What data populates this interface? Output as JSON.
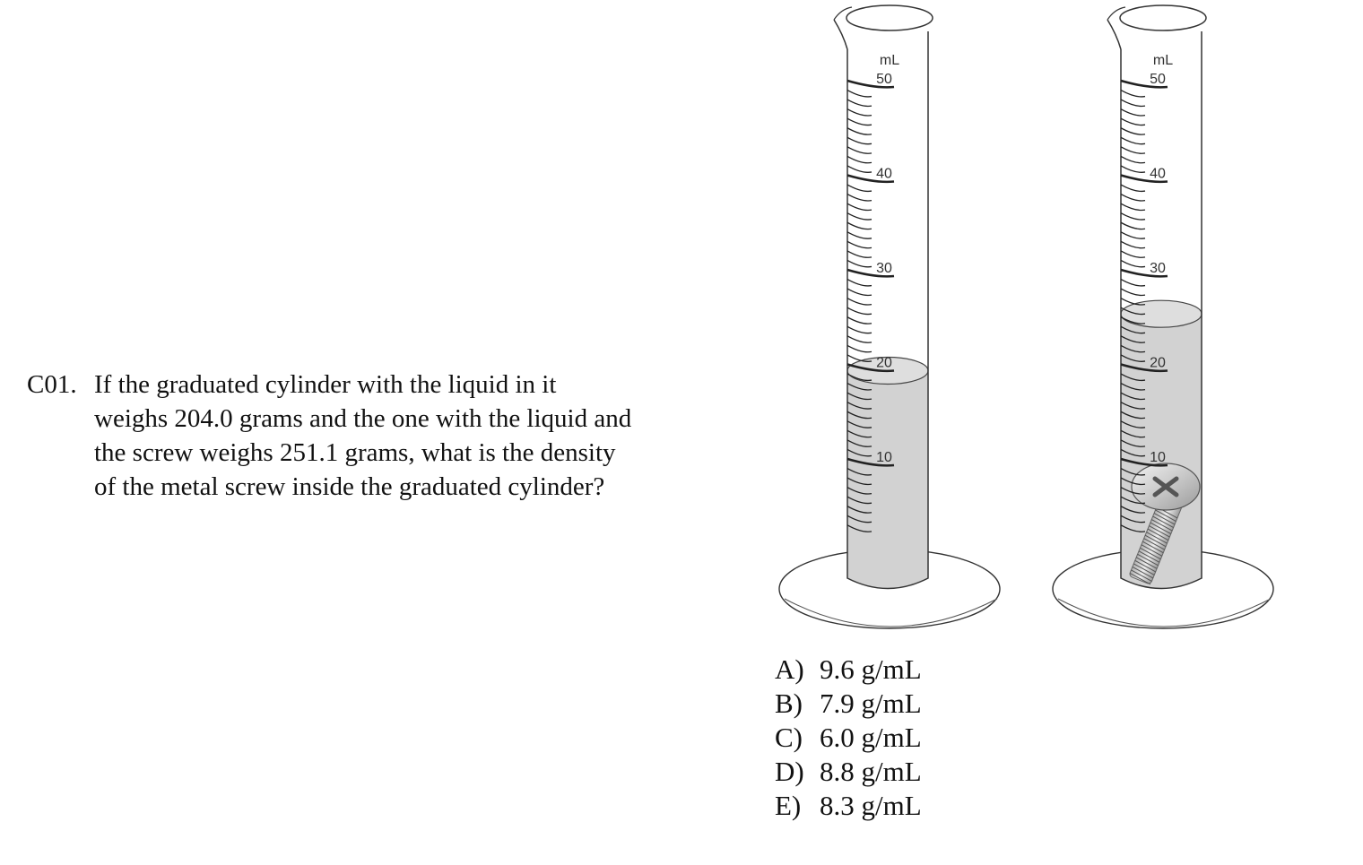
{
  "question": {
    "number": "C01.",
    "lines": [
      "If the graduated cylinder with the liquid in it",
      "weighs 204.0 grams and the one with the liquid and",
      "the screw weighs 251.1 grams, what is the density",
      "of the metal screw inside the graduated cylinder?"
    ]
  },
  "cylinders": [
    {
      "unit_label": "mL",
      "scale_labels": [
        "50",
        "40",
        "30",
        "20",
        "10"
      ],
      "liquid_level_ml": 20,
      "contains_screw": false
    },
    {
      "unit_label": "mL",
      "scale_labels": [
        "50",
        "40",
        "30",
        "20",
        "10"
      ],
      "liquid_level_ml": 26,
      "contains_screw": true
    }
  ],
  "answers": [
    {
      "letter": "A)",
      "text": "9.6 g/mL"
    },
    {
      "letter": "B)",
      "text": "7.9 g/mL"
    },
    {
      "letter": "C)",
      "text": "6.0 g/mL"
    },
    {
      "letter": "D)",
      "text": "8.8 g/mL"
    },
    {
      "letter": "E)",
      "text": "8.3 g/mL"
    }
  ]
}
